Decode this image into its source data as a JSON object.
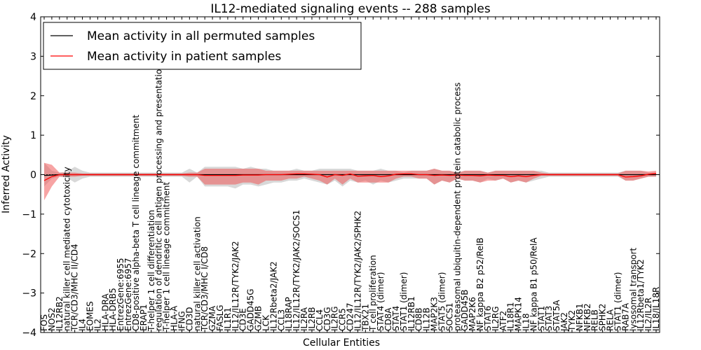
{
  "chart_data": {
    "type": "line",
    "title": "IL12-mediated signaling events -- 288 samples",
    "xlabel": "Cellular Entities",
    "ylabel": "Inferred Activity",
    "ylim": [
      -4,
      4
    ],
    "yticks": [
      -4,
      -3,
      -2,
      -1,
      0,
      1,
      2,
      3,
      4
    ],
    "ytick_labels": [
      "−4",
      "−3",
      "−2",
      "−1",
      "0",
      "1",
      "2",
      "3",
      "4"
    ],
    "legend": {
      "position": "top-left",
      "entries": [
        {
          "label": "Mean activity in all permuted samples",
          "color": "#000000"
        },
        {
          "label": "Mean activity in patient samples",
          "color": "#ff0000"
        }
      ]
    },
    "categories": [
      "FOS",
      "NOS2",
      "IL12RB2",
      "natural killer cell mediated cytotoxicity",
      "TCR/CD3/MHC II/CD4",
      "IL4",
      "EOMES",
      "IL2",
      "HLA-DRA",
      "HLA-DRB5",
      "EntrezGene:6955",
      "EntrezGene:6957",
      "CD8-positive alpha-beta T cell lineage commitment",
      "ERAP1",
      "T-helper 1 cell differentiation",
      "regulation of dendritic cell antigen processing and presentation",
      "T-helper 1 cell lineage commitment",
      "HLA-A",
      "IFNG",
      "CD3D",
      "natural killer cell activation",
      "TCR/CD3/MHC I/CD8",
      "GZMA",
      "FASLG",
      "IL1R1",
      "IL12/IL12R/TYK2/JAK2",
      "CD3E",
      "GADD45G",
      "GZMB",
      "LCK",
      "IL12Rbeta2/JAK2",
      "CCL3",
      "IL18RAP",
      "IL12/IL12R/TYK2/JAK2/SOCS1",
      "IL2RA",
      "IL2RB",
      "CCL4",
      "CD3G",
      "IL2RG",
      "CCR5",
      "CD247",
      "IL12/IL12R/TYK2/JAK2/SPHK2",
      "TBX21",
      "T cell proliferation",
      "STAT4 (dimer)",
      "CD8A",
      "STAT4",
      "STAT1 (dimer)",
      "IL12RB1",
      "CD8B",
      "IL12B",
      "MAP2K3",
      "STAT5 (dimer)",
      "SOCS1",
      "proteasomal ubiquitin-dependent protein catabolic process",
      "GADD45B",
      "MAP2K6",
      "NF kappa B2 p52/RelB",
      "STAT6",
      "IL2RG",
      "ATF2",
      "IL18R1",
      "MAPK14",
      "IL18",
      "NF kappa B1 p50/RelA",
      "STAT1",
      "STAT3",
      "STAT5A",
      "JAK2",
      "TYK2",
      "NFKB1",
      "NFKB2",
      "RELB",
      "SPHK2",
      "RELA",
      "STAT1 (dimer)",
      "RAB7A",
      "lysosomal transport",
      "IL12Rbeta1/TYK2",
      "IL2/IL2R",
      "IL18/IL18R"
    ],
    "series": [
      {
        "name": "Mean activity in all permuted samples",
        "color": "#000000",
        "values": [
          -0.02,
          -0.01,
          0.0,
          0.0,
          0.0,
          0.0,
          0.0,
          0.0,
          0.0,
          0.0,
          0.0,
          0.0,
          0.0,
          0.0,
          0.0,
          0.0,
          0.0,
          0.0,
          0.0,
          0.0,
          0.0,
          0.0,
          0.0,
          0.0,
          0.0,
          0.0,
          0.0,
          0.0,
          0.0,
          0.0,
          0.0,
          0.0,
          0.0,
          0.0,
          0.0,
          0.0,
          0.0,
          0.0,
          0.0,
          0.0,
          0.0,
          0.0,
          0.0,
          0.0,
          0.0,
          0.0,
          0.0,
          0.0,
          0.0,
          0.0,
          0.0,
          0.0,
          0.0,
          0.0,
          0.0,
          0.0,
          0.0,
          0.0,
          0.0,
          0.0,
          0.0,
          0.0,
          0.0,
          0.0,
          0.0,
          0.0,
          0.0,
          0.0,
          0.0,
          0.0,
          0.0,
          0.0,
          0.0,
          0.0,
          0.0,
          0.0,
          0.0,
          0.0,
          0.0,
          0.0,
          0.0
        ],
        "lower": [
          -0.3,
          -0.1,
          -0.05,
          -0.08,
          -0.2,
          -0.1,
          -0.05,
          -0.05,
          -0.05,
          -0.05,
          -0.05,
          -0.05,
          -0.05,
          -0.05,
          -0.05,
          -0.05,
          -0.05,
          -0.05,
          -0.05,
          -0.2,
          -0.05,
          -0.3,
          -0.3,
          -0.3,
          -0.3,
          -0.35,
          -0.25,
          -0.25,
          -0.3,
          -0.25,
          -0.2,
          -0.2,
          -0.15,
          -0.15,
          -0.1,
          -0.15,
          -0.2,
          -0.25,
          -0.15,
          -0.3,
          -0.15,
          -0.2,
          -0.15,
          -0.25,
          -0.15,
          -0.2,
          -0.15,
          -0.1,
          -0.1,
          -0.1,
          -0.1,
          -0.25,
          -0.15,
          -0.2,
          -0.1,
          -0.15,
          -0.15,
          -0.2,
          -0.1,
          -0.15,
          -0.1,
          -0.2,
          -0.15,
          -0.2,
          -0.15,
          -0.1,
          -0.05,
          -0.05,
          -0.05,
          -0.05,
          -0.05,
          -0.05,
          -0.05,
          -0.05,
          -0.05,
          -0.05,
          -0.15,
          -0.15,
          -0.1,
          -0.05,
          -0.05
        ],
        "upper": [
          0.3,
          0.1,
          0.05,
          0.08,
          0.2,
          0.1,
          0.05,
          0.05,
          0.05,
          0.05,
          0.05,
          0.05,
          0.05,
          0.05,
          0.05,
          0.05,
          0.05,
          0.05,
          0.05,
          0.15,
          0.05,
          0.2,
          0.2,
          0.2,
          0.2,
          0.2,
          0.15,
          0.2,
          0.15,
          0.15,
          0.1,
          0.1,
          0.1,
          0.15,
          0.1,
          0.1,
          0.15,
          0.15,
          0.15,
          0.15,
          0.15,
          0.1,
          0.1,
          0.1,
          0.15,
          0.1,
          0.1,
          0.05,
          0.1,
          0.1,
          0.1,
          0.15,
          0.1,
          0.1,
          0.05,
          0.1,
          0.1,
          0.1,
          0.05,
          0.1,
          0.1,
          0.1,
          0.1,
          0.1,
          0.1,
          0.1,
          0.05,
          0.05,
          0.05,
          0.05,
          0.05,
          0.05,
          0.05,
          0.05,
          0.05,
          0.05,
          0.1,
          0.1,
          0.1,
          0.05,
          0.05
        ]
      },
      {
        "name": "Mean activity in patient samples",
        "color": "#ff0000",
        "values": [
          -0.15,
          -0.05,
          0.0,
          0.0,
          0.0,
          0.0,
          0.0,
          0.0,
          0.0,
          0.0,
          0.0,
          0.0,
          0.0,
          0.0,
          0.0,
          0.0,
          0.0,
          0.0,
          0.0,
          0.0,
          0.0,
          -0.02,
          -0.02,
          -0.02,
          -0.02,
          -0.02,
          -0.01,
          -0.01,
          -0.01,
          0.0,
          0.0,
          0.0,
          0.01,
          0.02,
          0.02,
          0.01,
          0.0,
          -0.06,
          0.0,
          -0.02,
          0.02,
          -0.04,
          -0.03,
          -0.02,
          -0.05,
          -0.03,
          0.01,
          0.02,
          0.02,
          0.0,
          0.0,
          -0.02,
          -0.01,
          -0.02,
          -0.01,
          -0.02,
          -0.02,
          -0.03,
          -0.01,
          -0.02,
          -0.02,
          -0.05,
          -0.03,
          -0.05,
          -0.02,
          0.0,
          0.0,
          0.0,
          0.0,
          0.0,
          0.0,
          0.0,
          0.0,
          0.0,
          0.0,
          0.0,
          -0.06,
          -0.05,
          -0.03,
          0.01,
          0.03
        ],
        "lower": [
          -0.65,
          -0.3,
          -0.05,
          -0.05,
          -0.05,
          -0.03,
          -0.03,
          -0.03,
          -0.03,
          -0.03,
          -0.03,
          -0.03,
          -0.03,
          -0.03,
          -0.03,
          -0.03,
          -0.03,
          -0.03,
          -0.03,
          -0.05,
          -0.05,
          -0.25,
          -0.25,
          -0.25,
          -0.25,
          -0.25,
          -0.2,
          -0.2,
          -0.25,
          -0.15,
          -0.15,
          -0.15,
          -0.1,
          -0.1,
          -0.05,
          -0.1,
          -0.15,
          -0.25,
          -0.1,
          -0.25,
          -0.1,
          -0.2,
          -0.2,
          -0.2,
          -0.2,
          -0.2,
          -0.1,
          -0.05,
          -0.05,
          -0.1,
          -0.1,
          -0.25,
          -0.15,
          -0.2,
          -0.1,
          -0.15,
          -0.15,
          -0.2,
          -0.15,
          -0.15,
          -0.1,
          -0.2,
          -0.15,
          -0.2,
          -0.1,
          -0.03,
          -0.03,
          -0.03,
          -0.03,
          -0.03,
          -0.03,
          -0.03,
          -0.03,
          -0.03,
          -0.03,
          -0.03,
          -0.15,
          -0.15,
          -0.1,
          -0.05,
          -0.05
        ],
        "upper": [
          0.3,
          0.25,
          0.05,
          0.05,
          0.05,
          0.03,
          0.03,
          0.03,
          0.03,
          0.03,
          0.03,
          0.03,
          0.03,
          0.03,
          0.03,
          0.03,
          0.03,
          0.03,
          0.03,
          0.05,
          0.05,
          0.15,
          0.15,
          0.15,
          0.15,
          0.15,
          0.15,
          0.15,
          0.15,
          0.1,
          0.1,
          0.1,
          0.1,
          0.1,
          0.1,
          0.1,
          0.1,
          0.1,
          0.1,
          0.1,
          0.1,
          0.1,
          0.1,
          0.1,
          0.1,
          0.1,
          0.1,
          0.1,
          0.1,
          0.1,
          0.1,
          0.15,
          0.1,
          0.1,
          0.05,
          0.1,
          0.1,
          0.1,
          0.05,
          0.1,
          0.1,
          0.1,
          0.1,
          0.1,
          0.1,
          0.05,
          0.03,
          0.03,
          0.03,
          0.03,
          0.03,
          0.03,
          0.03,
          0.03,
          0.03,
          0.03,
          0.1,
          0.1,
          0.1,
          0.08,
          0.1
        ]
      }
    ]
  }
}
